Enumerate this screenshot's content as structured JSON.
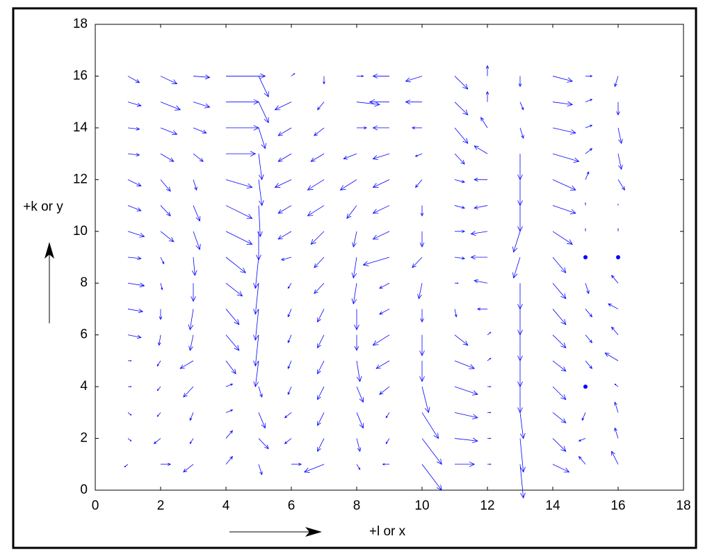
{
  "chart_data": {
    "type": "quiver",
    "xlabel": "+l or x",
    "ylabel": "+k or y",
    "color": "#0000ff",
    "x": [
      1,
      2,
      3,
      4,
      5,
      6,
      7,
      8,
      9,
      10,
      11,
      12,
      13,
      14,
      15,
      16
    ],
    "y": [
      1,
      2,
      3,
      4,
      5,
      6,
      7,
      8,
      9,
      10,
      11,
      12,
      13,
      14,
      15,
      16
    ],
    "u": [
      [
        -0.1,
        0.3,
        -0.3,
        0.2,
        0.1,
        0.3,
        -0.6,
        0.1,
        -0.2,
        0.6,
        0.6,
        0.1,
        0.1,
        0.5,
        -0.2,
        -0.2
      ],
      [
        0.1,
        -0.2,
        -0.1,
        0.2,
        0.3,
        -0.2,
        -0.2,
        0.1,
        -0.1,
        0.6,
        0.7,
        0.1,
        0.1,
        0.4,
        -0.2,
        -0.1
      ],
      [
        0.1,
        -0.1,
        -0.1,
        0.2,
        0.2,
        -0.2,
        -0.2,
        0.2,
        -0.1,
        0.5,
        0.7,
        0.1,
        0.1,
        0.4,
        -0.1,
        -0.1
      ],
      [
        0.1,
        -0.1,
        -0.3,
        0.2,
        0.1,
        -0.1,
        -0.2,
        0.2,
        -0.3,
        0.2,
        0.7,
        0.1,
        0,
        0.4,
        0,
        -0.1
      ],
      [
        0.1,
        -0.1,
        -0.4,
        0.3,
        -0.1,
        -0.1,
        -0.2,
        0.1,
        -0.4,
        0,
        0.6,
        0.1,
        0,
        0.4,
        0.2,
        -0.4
      ],
      [
        0.4,
        -0.05,
        -0.1,
        0.4,
        -0.1,
        -0.1,
        -0.2,
        0,
        -0.5,
        0,
        0.4,
        0.1,
        0,
        0.4,
        0.2,
        -0.2
      ],
      [
        0.45,
        0,
        -0.1,
        0.4,
        -0.1,
        -0.1,
        -0.2,
        0,
        -0.3,
        0,
        0.05,
        -0.3,
        0,
        0.4,
        0.2,
        -0.3
      ],
      [
        0.5,
        0.05,
        0,
        0.5,
        -0.1,
        -0.1,
        -0.3,
        -0.1,
        -0.3,
        -0.1,
        0.1,
        -0.4,
        0,
        0.4,
        0.1,
        -0.2
      ],
      [
        0.4,
        0.1,
        0.05,
        0.6,
        -0.1,
        -0.3,
        -0.3,
        -0.1,
        -0.8,
        -0.3,
        0.3,
        -0.5,
        -0.2,
        0.4,
        0,
        0
      ],
      [
        0.5,
        0.4,
        0.2,
        0.8,
        0,
        -0.4,
        -0.4,
        -0.1,
        -0.5,
        0,
        0.3,
        -0.5,
        -0.2,
        0.6,
        0,
        0
      ],
      [
        0.4,
        0.3,
        0.2,
        0.8,
        0.05,
        -0.4,
        -0.5,
        -0.3,
        -0.5,
        0,
        0.3,
        -0.4,
        0,
        0.7,
        0,
        0
      ],
      [
        0.4,
        0.3,
        0.1,
        0.8,
        0.1,
        -0.5,
        -0.5,
        -0.5,
        -0.5,
        -0.2,
        0.3,
        -0.4,
        0,
        0.7,
        0.1,
        0.2
      ],
      [
        0.35,
        0.4,
        0.3,
        0.9,
        0.1,
        -0.4,
        -0.4,
        -0.4,
        -0.5,
        -0.2,
        0.3,
        -0.4,
        0,
        0.8,
        0.2,
        0.1
      ],
      [
        0.35,
        0.5,
        0.4,
        1.0,
        0.2,
        -0.4,
        -0.3,
        0.3,
        -0.5,
        -0.3,
        0.4,
        -0.2,
        0.1,
        0.7,
        0.2,
        0.1
      ],
      [
        0.4,
        0.6,
        0.5,
        1.0,
        0.3,
        -0.5,
        -0.2,
        0.7,
        -0.6,
        -0.5,
        0.4,
        0,
        0.1,
        0.6,
        0.2,
        0
      ],
      [
        0.35,
        0.5,
        0.5,
        1.2,
        0.3,
        0.1,
        0,
        0.2,
        -0.5,
        -0.5,
        0.4,
        0,
        0,
        0.6,
        0.2,
        -0.1
      ]
    ],
    "v": [
      [
        -0.1,
        0,
        -0.3,
        0.3,
        -0.4,
        0,
        -0.3,
        -0.2,
        0,
        -1.0,
        0,
        0,
        -1.3,
        -0.3,
        0.3,
        0.5
      ],
      [
        -0.1,
        -0.2,
        -0.2,
        0.3,
        -0.4,
        -0.2,
        -0.5,
        -0.5,
        -0.2,
        -1.0,
        -0.1,
        0,
        -1.3,
        -0.5,
        -0.1,
        0.4
      ],
      [
        -0.1,
        -0.15,
        -0.3,
        0.1,
        -0.6,
        -0.2,
        -0.5,
        -0.6,
        -0.2,
        -1.0,
        -0.2,
        0,
        -1.0,
        -0.4,
        -0.3,
        0.4
      ],
      [
        0,
        -0.15,
        -0.4,
        0.1,
        -0.4,
        -0.3,
        -0.5,
        -0.6,
        -0.3,
        -1.0,
        -0.3,
        0,
        -1.0,
        -0.5,
        0,
        0.1
      ],
      [
        0,
        -0.2,
        -0.3,
        -0.5,
        -1.0,
        -0.3,
        -0.5,
        -0.8,
        -0.3,
        -0.8,
        -0.3,
        0.1,
        -1.0,
        -0.4,
        -0.3,
        0.3
      ],
      [
        -0.1,
        -0.4,
        -0.6,
        -0.6,
        -1.2,
        -0.3,
        -0.5,
        -0.6,
        -0.4,
        -0.8,
        -0.4,
        0.1,
        -1.0,
        -0.5,
        -0.3,
        0.3
      ],
      [
        -0.1,
        -0.4,
        -0.8,
        -0.6,
        -1.2,
        -0.3,
        -0.5,
        -0.8,
        -0.2,
        -0.5,
        -0.3,
        0,
        -1.0,
        -0.6,
        -0.3,
        0.2
      ],
      [
        -0.1,
        -0.25,
        -0.7,
        -0.5,
        -1.2,
        -0.2,
        -0.4,
        -0.8,
        -0.2,
        -0.6,
        0,
        0.1,
        -1.0,
        -0.6,
        -0.4,
        0.3
      ],
      [
        -0.05,
        -0.25,
        -0.7,
        -0.6,
        -1.2,
        -0.1,
        -0.4,
        -0.8,
        -0.3,
        -0.4,
        -0.05,
        0,
        -0.8,
        -0.6,
        0,
        0
      ],
      [
        -0.2,
        -0.4,
        -0.7,
        -0.5,
        -1.1,
        -0.3,
        -0.5,
        -0.6,
        -0.3,
        -0.6,
        0,
        -0.1,
        -0.8,
        -0.5,
        0.1,
        0.1
      ],
      [
        -0.2,
        -0.4,
        -0.6,
        -0.5,
        -1.2,
        -0.3,
        -0.4,
        -0.5,
        -0.3,
        -0.4,
        -0.1,
        -0.1,
        -1.0,
        -0.3,
        0.1,
        0.05
      ],
      [
        -0.25,
        -0.45,
        -0.4,
        -0.3,
        -1.0,
        -0.3,
        -0.4,
        -0.4,
        -0.3,
        -0.3,
        -0.1,
        0,
        -1.0,
        -0.4,
        0.3,
        -0.4
      ],
      [
        -0.05,
        -0.3,
        -0.3,
        0,
        -1.0,
        -0.3,
        -0.3,
        -0.2,
        -0.2,
        -0.1,
        -0.4,
        0.3,
        -1.0,
        -0.3,
        0.2,
        -0.6
      ],
      [
        -0.05,
        -0.25,
        -0.2,
        0,
        -0.8,
        -0.3,
        -0.3,
        0,
        0,
        0,
        -0.6,
        0.4,
        -0.4,
        -0.2,
        0.1,
        -0.6
      ],
      [
        -0.15,
        -0.3,
        -0.2,
        0,
        -0.8,
        -0.3,
        -0.3,
        -0.1,
        0,
        0,
        -0.5,
        0.4,
        -0.3,
        -0.1,
        0.1,
        -0.5
      ],
      [
        -0.25,
        -0.3,
        -0.05,
        0,
        -0.8,
        0.1,
        -0.3,
        0,
        0,
        -0.2,
        -0.5,
        0.4,
        -0.4,
        -0.2,
        0,
        -0.4
      ]
    ],
    "xlim": [
      0,
      18
    ],
    "ylim": [
      0,
      18
    ],
    "xticks": [
      0,
      2,
      4,
      6,
      8,
      10,
      12,
      14,
      16,
      18
    ],
    "yticks": [
      0,
      2,
      4,
      6,
      8,
      10,
      12,
      14,
      16,
      18
    ]
  }
}
